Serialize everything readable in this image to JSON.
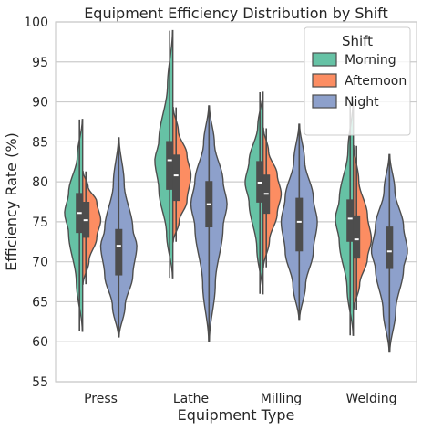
{
  "chart_data": {
    "type": "violin",
    "title": "Equipment Efficiency Distribution by Shift",
    "xlabel": "Equipment Type",
    "ylabel": "Efficiency Rate (%)",
    "ylim": [
      55,
      100
    ],
    "yticks": [
      55,
      60,
      65,
      70,
      75,
      80,
      85,
      90,
      95,
      100
    ],
    "grid": true,
    "split_violins": true,
    "legend": {
      "title": "Shift",
      "position": "top-right"
    },
    "categories": [
      "Press",
      "Lathe",
      "Milling",
      "Welding"
    ],
    "series": [
      {
        "name": "Morning",
        "color": "#66c2a5",
        "groups": [
          {
            "category": "Press",
            "min": 61.3,
            "q1": 73.6,
            "median": 76.1,
            "q3": 78.6,
            "max": 87.8
          },
          {
            "category": "Lathe",
            "min": 68.0,
            "q1": 79.0,
            "median": 82.7,
            "q3": 85.1,
            "max": 98.9
          },
          {
            "category": "Milling",
            "min": 66.0,
            "q1": 77.4,
            "median": 79.9,
            "q3": 82.6,
            "max": 91.2
          },
          {
            "category": "Welding",
            "min": 60.8,
            "q1": 72.5,
            "median": 75.4,
            "q3": 77.8,
            "max": 90.0
          }
        ]
      },
      {
        "name": "Afternoon",
        "color": "#fc8d62",
        "groups": [
          {
            "category": "Press",
            "min": 67.2,
            "q1": 73.0,
            "median": 75.2,
            "q3": 77.5,
            "max": 81.3
          },
          {
            "category": "Lathe",
            "min": 72.5,
            "q1": 77.6,
            "median": 80.8,
            "q3": 83.4,
            "max": 89.3
          },
          {
            "category": "Milling",
            "min": 69.3,
            "q1": 76.0,
            "median": 78.5,
            "q3": 80.9,
            "max": 86.7
          },
          {
            "category": "Welding",
            "min": 64.0,
            "q1": 70.4,
            "median": 72.8,
            "q3": 75.8,
            "max": 84.5
          }
        ]
      },
      {
        "name": "Night",
        "color": "#8da0cb",
        "groups": [
          {
            "category": "Press",
            "min": 60.6,
            "q1": 68.3,
            "median": 72.0,
            "q3": 74.1,
            "max": 85.5
          },
          {
            "category": "Lathe",
            "min": 60.1,
            "q1": 74.3,
            "median": 77.2,
            "q3": 80.1,
            "max": 89.5
          },
          {
            "category": "Milling",
            "min": 62.8,
            "q1": 71.3,
            "median": 75.0,
            "q3": 78.0,
            "max": 87.2
          },
          {
            "category": "Welding",
            "min": 58.7,
            "q1": 69.1,
            "median": 71.3,
            "q3": 74.4,
            "max": 83.4
          }
        ]
      }
    ]
  }
}
